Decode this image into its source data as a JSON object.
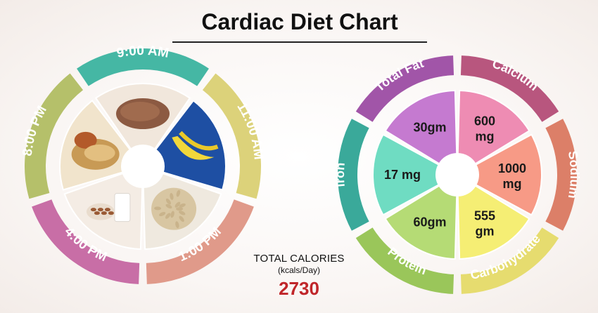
{
  "title": "Cardiac Diet Chart",
  "meal_times": [
    {
      "label": "9:00 AM",
      "color": "#45b7a4",
      "food": "dosa"
    },
    {
      "label": "11:00 AM",
      "color": "#dcd27a",
      "food": "banana"
    },
    {
      "label": "1:00 PM",
      "color": "#e09a8a",
      "food": "puffed rice"
    },
    {
      "label": "4:00 PM",
      "color": "#c86ea6",
      "food": "almonds and milk"
    },
    {
      "label": "8:00 PM",
      "color": "#b5c06a",
      "food": "chapati and curry"
    }
  ],
  "nutrients": [
    {
      "name": "Calcium",
      "value": "600\nmg",
      "outer": "#b8567e",
      "inner": "#ee8cb3"
    },
    {
      "name": "Sodium",
      "value": "1000\nmg",
      "outer": "#dc7f68",
      "inner": "#f79a86"
    },
    {
      "name": "Carbohydrate",
      "value": "555\ngm",
      "outer": "#e6dc6f",
      "inner": "#f5ee74"
    },
    {
      "name": "Protein",
      "value": "60gm",
      "outer": "#9ac65a",
      "inner": "#b5db75"
    },
    {
      "name": "Iron",
      "value": "17 mg",
      "outer": "#3aa99a",
      "inner": "#6fdcc2"
    },
    {
      "name": "Total Fat",
      "value": "30gm",
      "outer": "#a155a8",
      "inner": "#c57ad0"
    }
  ],
  "totals": {
    "label": "TOTAL CALORIES",
    "unit": "(kcals/Day)",
    "value": "2730"
  }
}
